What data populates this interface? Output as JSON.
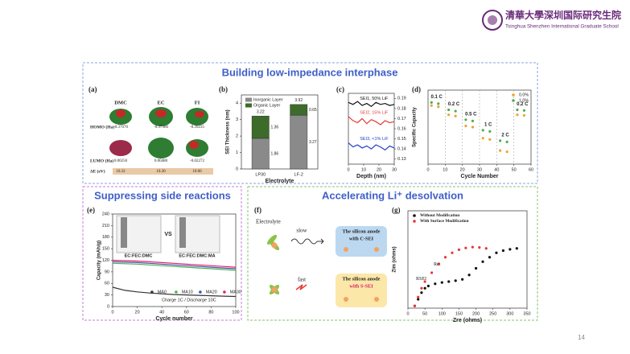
{
  "header": {
    "logo_cn": "清華大學深圳国际研究生院",
    "logo_en": "Tsinghua Shenzhen International Graduate School"
  },
  "page_number": "14",
  "sections": [
    {
      "title": "Building low-impedance interphase"
    },
    {
      "title": "Suppressing side reactions"
    },
    {
      "title": "Accelerating Li⁺ desolvation"
    }
  ],
  "panels": {
    "a": {
      "label": "(a)",
      "columns": [
        "DMC",
        "EC",
        "FI"
      ],
      "rows": [
        {
          "name": "HOMO (Ha)",
          "values": [
            "-0.37670",
            "-0.37360",
            "-0.39235"
          ]
        },
        {
          "name": "LUMO (Ha)",
          "values": [
            "0.00250",
            "0.00480",
            "-0.02272"
          ]
        },
        {
          "name": "ΔE (eV)",
          "values": [
            "10.32",
            "10.30",
            "10.06"
          ]
        }
      ]
    },
    "b": {
      "label": "(b)",
      "chart": {
        "type": "bar",
        "categories": [
          "LP30",
          "LF-2"
        ],
        "series": [
          {
            "name": "Inorganic Layer",
            "color": "#8a8a8a",
            "values": [
              1.86,
              3.27
            ]
          },
          {
            "name": "Organic Layer",
            "color": "#3d6b2a",
            "values": [
              1.36,
              0.65
            ]
          }
        ],
        "total_labels": [
          "3.22",
          "3.92"
        ],
        "ylim": [
          0,
          4.5
        ],
        "yticks": [
          0,
          1,
          2,
          3,
          4
        ],
        "ylabel": "SEI Thickness (nm)",
        "xlabel": "Electrolyte",
        "legend": "upper left"
      }
    },
    "c": {
      "label": "(c)",
      "chart": {
        "type": "line",
        "x": [
          0,
          3,
          6,
          9,
          12,
          15,
          18,
          21,
          24,
          27,
          30
        ],
        "series": [
          {
            "name": "SEI1, 50% LiF",
            "color": "#111111",
            "values": [
              0.186,
              0.184,
              0.187,
              0.183,
              0.185,
              0.182,
              0.186,
              0.184,
              0.185,
              0.183,
              0.184
            ]
          },
          {
            "name": "SEI2, 15% LiF",
            "color": "#e53935",
            "values": [
              0.172,
              0.168,
              0.166,
              0.17,
              0.165,
              0.169,
              0.167,
              0.164,
              0.168,
              0.166,
              0.167
            ]
          },
          {
            "name": "SEI3, <1% LiF",
            "color": "#1e40c8",
            "values": [
              0.146,
              0.142,
              0.144,
              0.141,
              0.143,
              0.14,
              0.144,
              0.142,
              0.139,
              0.143,
              0.141
            ]
          }
        ],
        "xlim": [
          0,
          30
        ],
        "xticks": [
          0,
          10,
          20,
          30
        ],
        "ylim": [
          0.125,
          0.195
        ],
        "yticks": [
          0.13,
          0.14,
          0.15,
          0.16,
          0.17,
          0.18,
          0.19
        ],
        "y_side": "right",
        "xlabel": "Depth (nm)",
        "series_labels": true
      }
    },
    "d": {
      "label": "(d)",
      "chart": {
        "type": "scatter",
        "x": [
          2,
          6,
          12,
          16,
          22,
          26,
          32,
          36,
          42,
          46,
          52,
          56
        ],
        "series": [
          {
            "name": "0.0%",
            "color": "#f0a030",
            "values": [
              95,
              93,
              80,
              78,
              62,
              60,
              42,
              40,
              22,
              20,
              80,
              79
            ]
          },
          {
            "name": "1.0%",
            "color": "#4caf50",
            "values": [
              100,
              98,
              88,
              86,
              72,
              70,
              55,
              53,
              38,
              36,
              88,
              87
            ]
          }
        ],
        "xlim": [
          0,
          60
        ],
        "xticks": [
          0,
          10,
          20,
          30,
          40,
          50,
          60
        ],
        "ylim": [
          0,
          120
        ],
        "ylabel": "Specific Capacity",
        "xlabel": "Cycle Number",
        "rate_labels": [
          "0.1 C",
          "0.2 C",
          "0.5 C",
          "1 C",
          "2 C",
          "0.2 C"
        ],
        "vgrid": true,
        "legend": "upper right"
      }
    },
    "e": {
      "label": "(e)",
      "vs": "VS",
      "inset_captions": [
        "EC:FEC:DMC",
        "EC:FEC:DMC:MA"
      ],
      "chart": {
        "type": "line",
        "x": [
          0,
          10,
          20,
          30,
          40,
          50,
          60,
          70,
          80,
          90,
          100
        ],
        "series": [
          {
            "name": "MA0",
            "color": "#333333",
            "values": [
              50,
              42,
              38,
              35,
              33,
              31,
              30,
              29,
              28,
              27,
              26
            ]
          },
          {
            "name": "MA10",
            "color": "#4caf50",
            "values": [
              112,
              111,
              110,
              108,
              106,
              104,
              102,
              100,
              98,
              96,
              94
            ]
          },
          {
            "name": "MA20",
            "color": "#3f51b5",
            "values": [
              116,
              115,
              114,
              112,
              110,
              108,
              106,
              104,
              102,
              100,
              98
            ]
          },
          {
            "name": "MA30",
            "color": "#e91e63",
            "values": [
              120,
              119,
              118,
              116,
              114,
              112,
              110,
              108,
              106,
              104,
              102
            ]
          }
        ],
        "xlim": [
          0,
          100
        ],
        "xticks": [
          0,
          20,
          40,
          60,
          80,
          100
        ],
        "ylim": [
          0,
          240
        ],
        "yticks": [
          0,
          30,
          60,
          90,
          120,
          150,
          180,
          210,
          240
        ],
        "ylabel": "Capacity (mAh/g)",
        "xlabel": "Cycle number",
        "note": "Charge 1C / Discharge 10C",
        "legend": "lower right"
      }
    },
    "f": {
      "label": "(f)",
      "electrolyte": "Electrolyte",
      "slow": "slow",
      "fast": "fast",
      "box1": [
        "The silicon anode",
        "with C-SEI"
      ],
      "box2": [
        "The silicon anode",
        "with S-SEI"
      ]
    },
    "g": {
      "label": "(g)",
      "chart": {
        "type": "scatter",
        "series": [
          {
            "name": "Without Modification",
            "color": "#111111",
            "x": [
              20,
              30,
              40,
              50,
              60,
              80,
              100,
              120,
              140,
              160,
              180,
              200,
              220,
              240,
              260,
              280,
              300,
              320
            ],
            "values": [
              5,
              20,
              35,
              45,
              50,
              55,
              58,
              60,
              62,
              65,
              75,
              90,
              105,
              115,
              125,
              130,
              133,
              135
            ]
          },
          {
            "name": "With Surface Modification",
            "color": "#e53935",
            "x": [
              20,
              30,
              40,
              50,
              70,
              90,
              110,
              130,
              150,
              170,
              190,
              210,
              230
            ],
            "values": [
              5,
              25,
              45,
              60,
              80,
              100,
              115,
              125,
              132,
              136,
              138,
              137,
              135
            ]
          }
        ],
        "xlim": [
          0,
          350
        ],
        "xticks": [
          0,
          50,
          100,
          150,
          200,
          250,
          300,
          350
        ],
        "ylim": [
          0,
          220
        ],
        "ylabel": "Zim (ohms)",
        "xlabel": "Zre (ohms)",
        "annotations": [
          "RSEI",
          "Rct"
        ],
        "legend": "upper left"
      }
    }
  }
}
